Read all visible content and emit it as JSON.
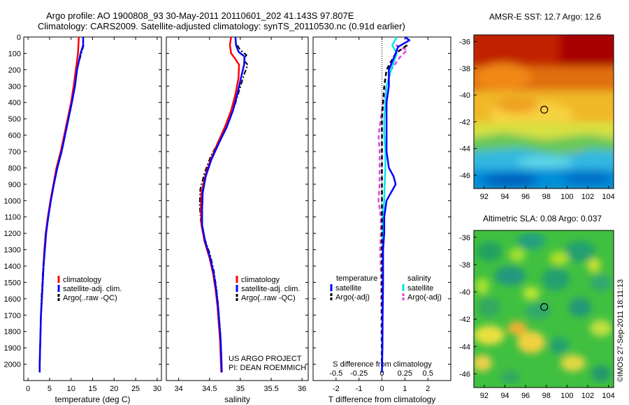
{
  "header": {
    "line1": "Argo profile: AO 1900808_93 30-May-2011 20110601_202 41.143S 97.807E",
    "line2": "Climatology: CARS2009. Satellite-adjusted climatology: synTS_20110530.nc (0.91d earlier)"
  },
  "project": {
    "line1": "US ARGO PROJECT",
    "line2": "PI: DEAN ROEMMICH"
  },
  "stamp": "©IMOS 27-Sep-2011 18:11:13",
  "colors": {
    "clim": "#ff0000",
    "sat": "#0000ff",
    "argo": "#000000",
    "sat_s": "#00e5ee",
    "argo_s": "#e040e0"
  },
  "chart_data": [
    {
      "id": "temperature",
      "type": "line",
      "xlabel": "temperature (deg C)",
      "ylabel": "",
      "xlim": [
        -1,
        31
      ],
      "ylim": [
        2100,
        0
      ],
      "xticks": [
        0,
        5,
        10,
        15,
        20,
        25,
        30
      ],
      "yticks": [
        0,
        100,
        200,
        300,
        400,
        500,
        600,
        700,
        800,
        900,
        1000,
        1100,
        1200,
        1300,
        1400,
        1500,
        1600,
        1700,
        1800,
        1900,
        2000
      ],
      "legend": [
        "climatology",
        "satellite-adj. clim.",
        "Argo(..raw -QC)"
      ],
      "legend_position": "lower-right",
      "series": [
        {
          "name": "climatology",
          "points": [
            [
              11.8,
              0
            ],
            [
              11.7,
              50
            ],
            [
              11.6,
              100
            ],
            [
              11.1,
              200
            ],
            [
              10.6,
              300
            ],
            [
              10.0,
              400
            ],
            [
              9.2,
              500
            ],
            [
              8.4,
              600
            ],
            [
              7.6,
              700
            ],
            [
              6.6,
              800
            ],
            [
              5.9,
              900
            ],
            [
              5.2,
              1000
            ],
            [
              4.6,
              1100
            ],
            [
              4.1,
              1200
            ],
            [
              3.8,
              1300
            ],
            [
              3.6,
              1400
            ],
            [
              3.4,
              1500
            ],
            [
              3.2,
              1600
            ],
            [
              3.0,
              1700
            ],
            [
              2.9,
              1800
            ],
            [
              2.8,
              1900
            ],
            [
              2.7,
              2000
            ],
            [
              2.7,
              2050
            ]
          ]
        },
        {
          "name": "satellite-adj. clim.",
          "points": [
            [
              12.8,
              0
            ],
            [
              12.8,
              50
            ],
            [
              12.2,
              100
            ],
            [
              11.4,
              200
            ],
            [
              10.9,
              300
            ],
            [
              10.2,
              400
            ],
            [
              9.4,
              500
            ],
            [
              8.6,
              600
            ],
            [
              7.8,
              700
            ],
            [
              6.8,
              800
            ],
            [
              6.0,
              900
            ],
            [
              5.3,
              1000
            ],
            [
              4.7,
              1100
            ],
            [
              4.2,
              1200
            ],
            [
              3.9,
              1300
            ],
            [
              3.6,
              1400
            ],
            [
              3.4,
              1500
            ],
            [
              3.2,
              1600
            ],
            [
              3.0,
              1700
            ],
            [
              2.9,
              1800
            ],
            [
              2.8,
              1900
            ],
            [
              2.7,
              2000
            ],
            [
              2.7,
              2050
            ]
          ]
        },
        {
          "name": "Argo(..raw -QC)",
          "points": [
            [
              12.9,
              50
            ],
            [
              12.4,
              100
            ],
            [
              11.3,
              200
            ],
            [
              10.8,
              300
            ],
            [
              10.1,
              400
            ],
            [
              9.3,
              500
            ],
            [
              8.5,
              600
            ],
            [
              7.7,
              700
            ],
            [
              6.7,
              800
            ],
            [
              5.9,
              900
            ],
            [
              5.2,
              1000
            ],
            [
              4.6,
              1100
            ],
            [
              4.1,
              1200
            ],
            [
              3.8,
              1300
            ],
            [
              3.5,
              1400
            ],
            [
              3.3,
              1500
            ],
            [
              3.1,
              1600
            ],
            [
              3.0,
              1700
            ],
            [
              2.9,
              1800
            ],
            [
              2.8,
              1900
            ],
            [
              2.7,
              2000
            ]
          ]
        }
      ]
    },
    {
      "id": "salinity",
      "type": "line",
      "xlabel": "salinity",
      "ylabel": "",
      "xlim": [
        33.8,
        36.1
      ],
      "ylim": [
        2100,
        0
      ],
      "xticks": [
        34,
        34.5,
        35,
        35.5,
        36
      ],
      "xticklabels": [
        "34",
        "34.5",
        "35",
        "35.5",
        "36"
      ],
      "legend": [
        "climatology",
        "satellite-adj. clim.",
        "Argo(..raw -QC)"
      ],
      "legend_position": "lower-right",
      "series": [
        {
          "name": "climatology",
          "points": [
            [
              34.85,
              0
            ],
            [
              34.83,
              50
            ],
            [
              34.85,
              100
            ],
            [
              34.91,
              130
            ],
            [
              34.98,
              170
            ],
            [
              34.97,
              250
            ],
            [
              34.92,
              350
            ],
            [
              34.85,
              450
            ],
            [
              34.75,
              550
            ],
            [
              34.63,
              650
            ],
            [
              34.52,
              750
            ],
            [
              34.43,
              850
            ],
            [
              34.37,
              950
            ],
            [
              34.36,
              1050
            ],
            [
              34.37,
              1150
            ],
            [
              34.42,
              1250
            ],
            [
              34.5,
              1350
            ],
            [
              34.56,
              1450
            ],
            [
              34.6,
              1550
            ],
            [
              34.63,
              1650
            ],
            [
              34.65,
              1750
            ],
            [
              34.67,
              1850
            ],
            [
              34.68,
              1950
            ],
            [
              34.69,
              2050
            ]
          ]
        },
        {
          "name": "satellite-adj. clim.",
          "points": [
            [
              34.92,
              0
            ],
            [
              34.93,
              50
            ],
            [
              34.97,
              90
            ],
            [
              35.07,
              120
            ],
            [
              35.06,
              170
            ],
            [
              35.01,
              250
            ],
            [
              34.95,
              350
            ],
            [
              34.88,
              450
            ],
            [
              34.78,
              550
            ],
            [
              34.65,
              650
            ],
            [
              34.53,
              750
            ],
            [
              34.44,
              850
            ],
            [
              34.39,
              950
            ],
            [
              34.38,
              1050
            ],
            [
              34.38,
              1150
            ],
            [
              34.43,
              1250
            ],
            [
              34.51,
              1350
            ],
            [
              34.57,
              1450
            ],
            [
              34.61,
              1550
            ],
            [
              34.64,
              1650
            ],
            [
              34.66,
              1750
            ],
            [
              34.68,
              1850
            ],
            [
              34.69,
              1950
            ],
            [
              34.7,
              2050
            ]
          ]
        },
        {
          "name": "Argo(..raw -QC)",
          "points": [
            [
              34.95,
              50
            ],
            [
              35.0,
              80
            ],
            [
              35.1,
              110
            ],
            [
              35.05,
              140
            ],
            [
              35.12,
              170
            ],
            [
              35.06,
              230
            ],
            [
              34.98,
              330
            ],
            [
              34.9,
              430
            ],
            [
              34.79,
              530
            ],
            [
              34.66,
              630
            ],
            [
              34.52,
              730
            ],
            [
              34.42,
              830
            ],
            [
              34.35,
              930
            ],
            [
              34.34,
              1030
            ],
            [
              34.36,
              1130
            ],
            [
              34.42,
              1230
            ],
            [
              34.51,
              1330
            ],
            [
              34.57,
              1430
            ],
            [
              34.61,
              1530
            ],
            [
              34.64,
              1630
            ],
            [
              34.66,
              1730
            ],
            [
              34.68,
              1830
            ],
            [
              34.69,
              1930
            ],
            [
              34.7,
              2000
            ]
          ]
        }
      ]
    },
    {
      "id": "difference",
      "type": "line",
      "xlabel": "T difference from climatology",
      "xlabel2": "S difference from climatology",
      "xlim": [
        -3,
        3
      ],
      "ylim": [
        2100,
        0
      ],
      "xticks": [
        -2,
        -1,
        0,
        1,
        2
      ],
      "xticks2": [
        -0.5,
        -0.25,
        0,
        0.25,
        0.5
      ],
      "xticklabels2": [
        "-0.5",
        "-0.25",
        "0",
        "0.25",
        "0.5"
      ],
      "legend_temperature": {
        "title": "temperature",
        "items": [
          "satellite",
          "Argo(-adj)"
        ]
      },
      "legend_salinity": {
        "title": "salinity",
        "items": [
          "satellite",
          "Argo(-adj)"
        ]
      },
      "legend_position": "lower-center",
      "series": [
        {
          "name": "temperature satellite",
          "points": [
            [
              1.0,
              0
            ],
            [
              1.2,
              20
            ],
            [
              0.7,
              60
            ],
            [
              0.6,
              100
            ],
            [
              0.3,
              200
            ],
            [
              0.3,
              300
            ],
            [
              0.2,
              400
            ],
            [
              0.2,
              500
            ],
            [
              0.2,
              600
            ],
            [
              0.2,
              700
            ],
            [
              0.3,
              800
            ],
            [
              0.5,
              850
            ],
            [
              0.6,
              900
            ],
            [
              0.4,
              950
            ],
            [
              0.2,
              1000
            ],
            [
              0.1,
              1100
            ],
            [
              0.1,
              1200
            ],
            [
              0.05,
              1300
            ],
            [
              0.05,
              1500
            ],
            [
              0.03,
              1700
            ],
            [
              0.02,
              1900
            ],
            [
              0.0,
              2050
            ]
          ]
        },
        {
          "name": "temperature Argo(-adj)",
          "points": [
            [
              1.1,
              50
            ],
            [
              0.6,
              100
            ],
            [
              0.2,
              200
            ],
            [
              0.1,
              300
            ],
            [
              0.05,
              400
            ],
            [
              0.0,
              500
            ],
            [
              0.0,
              600
            ],
            [
              0.0,
              700
            ],
            [
              0.0,
              800
            ],
            [
              0.0,
              900
            ],
            [
              0.0,
              1000
            ],
            [
              0.0,
              1100
            ],
            [
              0.0,
              1200
            ],
            [
              0.0,
              1300
            ],
            [
              0.0,
              1400
            ],
            [
              0.0,
              1500
            ],
            [
              0.0,
              1600
            ],
            [
              0.0,
              1700
            ],
            [
              0.0,
              1800
            ],
            [
              0.0,
              1900
            ],
            [
              0.0,
              2000
            ]
          ]
        },
        {
          "name": "salinity satellite",
          "points": [
            [
              0.65,
              0
            ],
            [
              0.45,
              50
            ],
            [
              0.65,
              100
            ],
            [
              0.4,
              200
            ],
            [
              0.2,
              300
            ],
            [
              0.15,
              400
            ],
            [
              0.1,
              500
            ],
            [
              0.1,
              600
            ],
            [
              0.15,
              700
            ],
            [
              0.15,
              800
            ],
            [
              0.12,
              900
            ],
            [
              0.1,
              1000
            ],
            [
              0.05,
              1100
            ],
            [
              0.03,
              1200
            ],
            [
              0.03,
              1300
            ],
            [
              0.02,
              1500
            ],
            [
              0.02,
              1700
            ],
            [
              0.01,
              1900
            ],
            [
              0.0,
              2050
            ]
          ]
        },
        {
          "name": "salinity Argo(-adj)",
          "points": [
            [
              0.6,
              50
            ],
            [
              1.1,
              80
            ],
            [
              0.8,
              120
            ],
            [
              0.4,
              200
            ],
            [
              0.2,
              300
            ],
            [
              0.05,
              400
            ],
            [
              -0.05,
              500
            ],
            [
              -0.15,
              600
            ],
            [
              -0.1,
              700
            ],
            [
              -0.1,
              800
            ],
            [
              -0.1,
              900
            ],
            [
              -0.15,
              1000
            ],
            [
              -0.05,
              1100
            ],
            [
              -0.05,
              1200
            ],
            [
              -0.08,
              1300
            ],
            [
              -0.05,
              1400
            ],
            [
              -0.04,
              1500
            ],
            [
              -0.03,
              1600
            ],
            [
              -0.02,
              1700
            ],
            [
              -0.02,
              1800
            ],
            [
              -0.01,
              1900
            ],
            [
              -0.01,
              2000
            ]
          ]
        }
      ]
    },
    {
      "id": "sst_map",
      "type": "heatmap",
      "title": "AMSR-E SST: 12.7 Argo: 12.6",
      "xlim": [
        91,
        104.5
      ],
      "ylim": [
        -47,
        -35.5
      ],
      "xticks": [
        92,
        94,
        96,
        98,
        100,
        102,
        104
      ],
      "yticks": [
        -36,
        -38,
        -40,
        -42,
        -44,
        -46
      ],
      "marker": [
        97.8,
        -41.1
      ]
    },
    {
      "id": "sla_map",
      "type": "heatmap",
      "title": "Altimetric SLA: 0.08 Argo: 0.037",
      "xlim": [
        91,
        104.5
      ],
      "ylim": [
        -47,
        -35.5
      ],
      "xticks": [
        92,
        94,
        96,
        98,
        100,
        102,
        104
      ],
      "yticks": [
        -36,
        -38,
        -40,
        -42,
        -44,
        -46
      ],
      "marker": [
        97.8,
        -41.1
      ]
    }
  ]
}
